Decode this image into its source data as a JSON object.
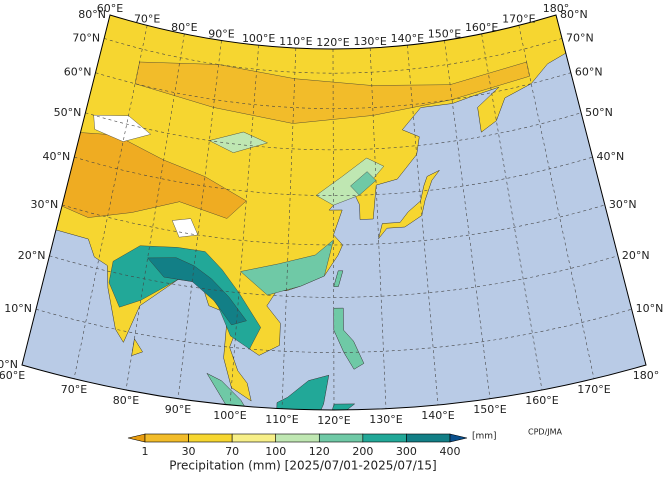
{
  "map": {
    "longitude_labels_top": [
      "60°E",
      "70°E",
      "80°E",
      "90°E",
      "100°E",
      "110°E",
      "120°E",
      "130°E",
      "140°E",
      "150°E",
      "160°E",
      "170°E",
      "180°"
    ],
    "longitude_labels_bottom": [
      "60°E",
      "70°E",
      "80°E",
      "90°E",
      "100°E",
      "110°E",
      "120°E",
      "130°E",
      "140°E",
      "150°E",
      "160°E",
      "170°E",
      "180°"
    ],
    "latitude_labels_left": [
      "80°N",
      "70°N",
      "60°N",
      "50°N",
      "40°N",
      "30°N",
      "20°N",
      "10°N",
      "0°N"
    ],
    "latitude_labels_right": [
      "80°N",
      "70°N",
      "60°N",
      "50°N",
      "40°N",
      "30°N",
      "20°N",
      "10°N"
    ]
  },
  "colorbar": {
    "ticks": [
      1,
      30,
      70,
      100,
      120,
      200,
      300,
      400
    ],
    "unit": "[mm]",
    "colors": [
      "#e89c10",
      "#f2bc2a",
      "#f6d630",
      "#f7ef88",
      "#bfe7b2",
      "#6fc9a6",
      "#22a898",
      "#127f86",
      "#0a4f8c"
    ]
  },
  "title": "Precipitation (mm) [2025/07/01-2025/07/15]",
  "credit": "CPD/JMA"
}
